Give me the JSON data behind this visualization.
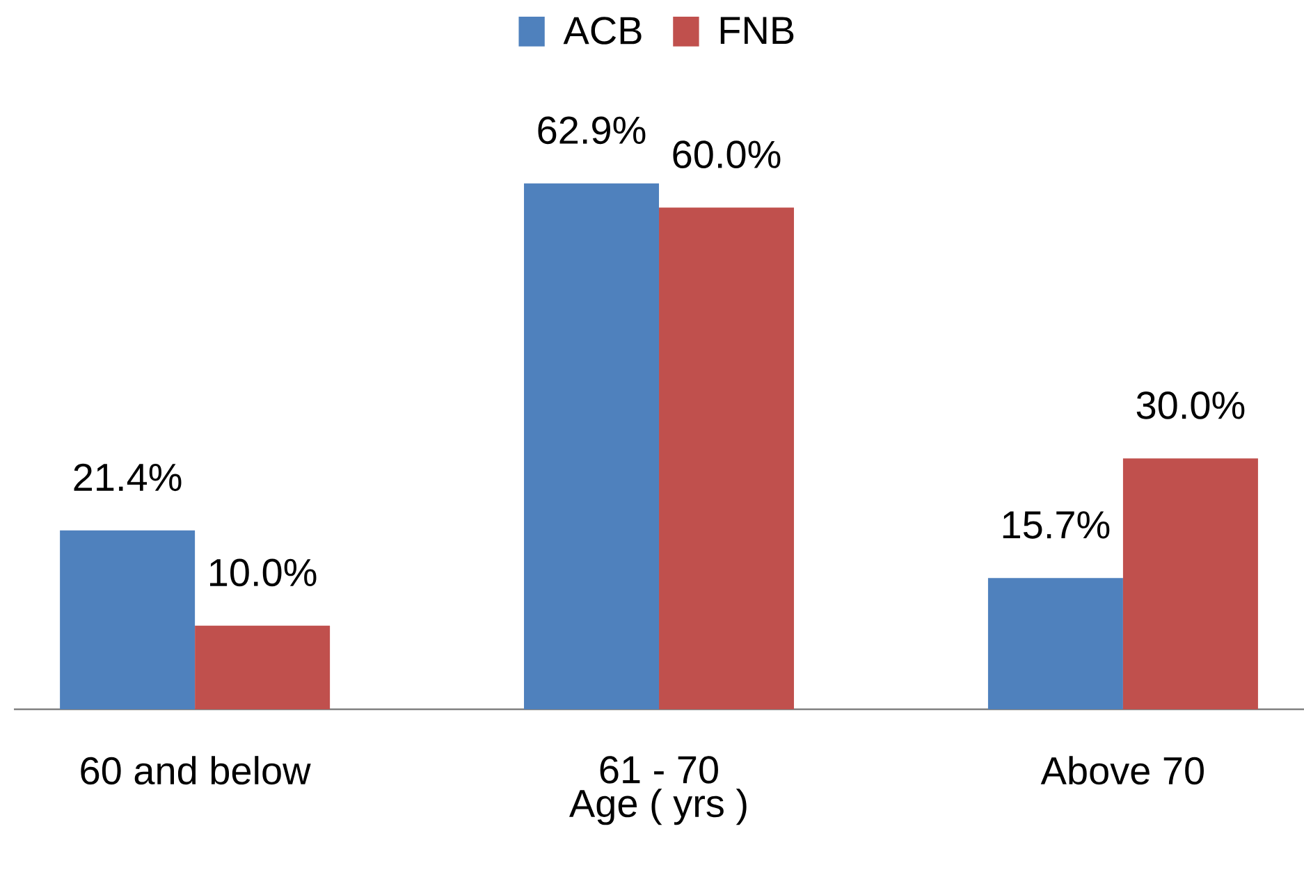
{
  "chart_data": {
    "type": "bar",
    "xlabel": "Age ( yrs )",
    "categories": [
      "60 and below",
      "61 - 70",
      "Above 70"
    ],
    "series": [
      {
        "name": "ACB",
        "color": "#4f81bd",
        "values": [
          21.4,
          62.9,
          15.7
        ],
        "value_labels": [
          "21.4%",
          "62.9%",
          "15.7%"
        ]
      },
      {
        "name": "FNB",
        "color": "#c0504d",
        "values": [
          10.0,
          60.0,
          30.0
        ],
        "value_labels": [
          "10.0%",
          "60.0%",
          "30.0%"
        ]
      }
    ],
    "legend": "top"
  }
}
